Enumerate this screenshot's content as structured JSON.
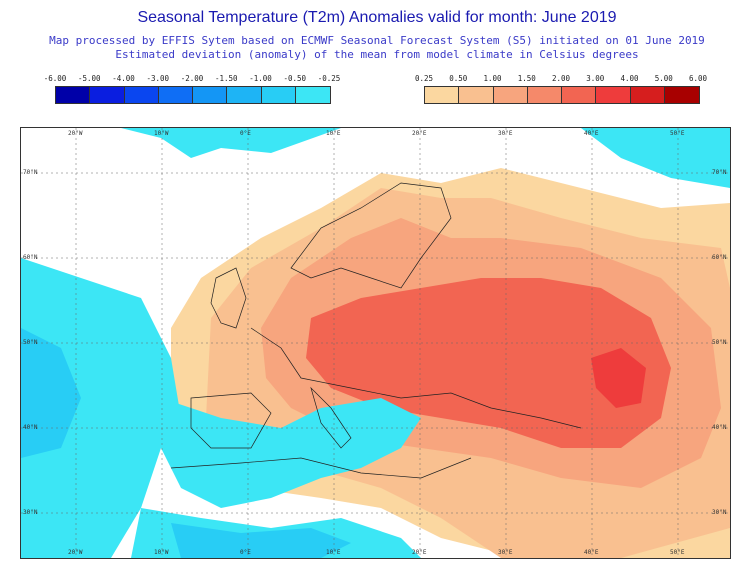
{
  "title": "Seasonal Temperature (T2m) Anomalies valid for month: June 2019",
  "subtitle_line1": "Map processed by EFFIS Sytem based on ECMWF Seasonal Forecast System (S5) initiated on 01 June 2019",
  "subtitle_line2": "Estimated deviation (anomaly) of the mean from model climate in Celsius degrees",
  "legend_negative": {
    "labels": [
      "-6.00",
      "-5.00",
      "-4.00",
      "-3.00",
      "-2.00",
      "-1.50",
      "-1.00",
      "-0.50",
      "-0.25"
    ],
    "colors": [
      "#0000a8",
      "#0a1ee0",
      "#0a46f0",
      "#0f6ef5",
      "#1496f5",
      "#1eb4f5",
      "#28cdf5",
      "#3ce6f5"
    ]
  },
  "legend_positive": {
    "labels": [
      "0.25",
      "0.50",
      "1.00",
      "1.50",
      "2.00",
      "3.00",
      "4.00",
      "5.00",
      "6.00"
    ],
    "colors": [
      "#fbd7a0",
      "#f9c090",
      "#f7a57e",
      "#f5896a",
      "#f26552",
      "#ee3c3c",
      "#d61e1e",
      "#a80000"
    ]
  },
  "longitude_labels": [
    "20°W",
    "10°W",
    "0°E",
    "10°E",
    "20°E",
    "30°E",
    "40°E",
    "50°E"
  ],
  "latitude_labels": [
    "70°N",
    "60°N",
    "50°N",
    "40°N",
    "30°N"
  ],
  "colors": {
    "title": "#1a1ab0",
    "subtitle": "#3a3ac8",
    "cold": "#3ce6f5",
    "cold_mid": "#28cdf5",
    "warm_light": "#fbd7a0",
    "warm": "#f9c090",
    "warm_mid": "#f7a57e",
    "warm_strong": "#f26552",
    "warm_hot": "#ee3c3c"
  }
}
